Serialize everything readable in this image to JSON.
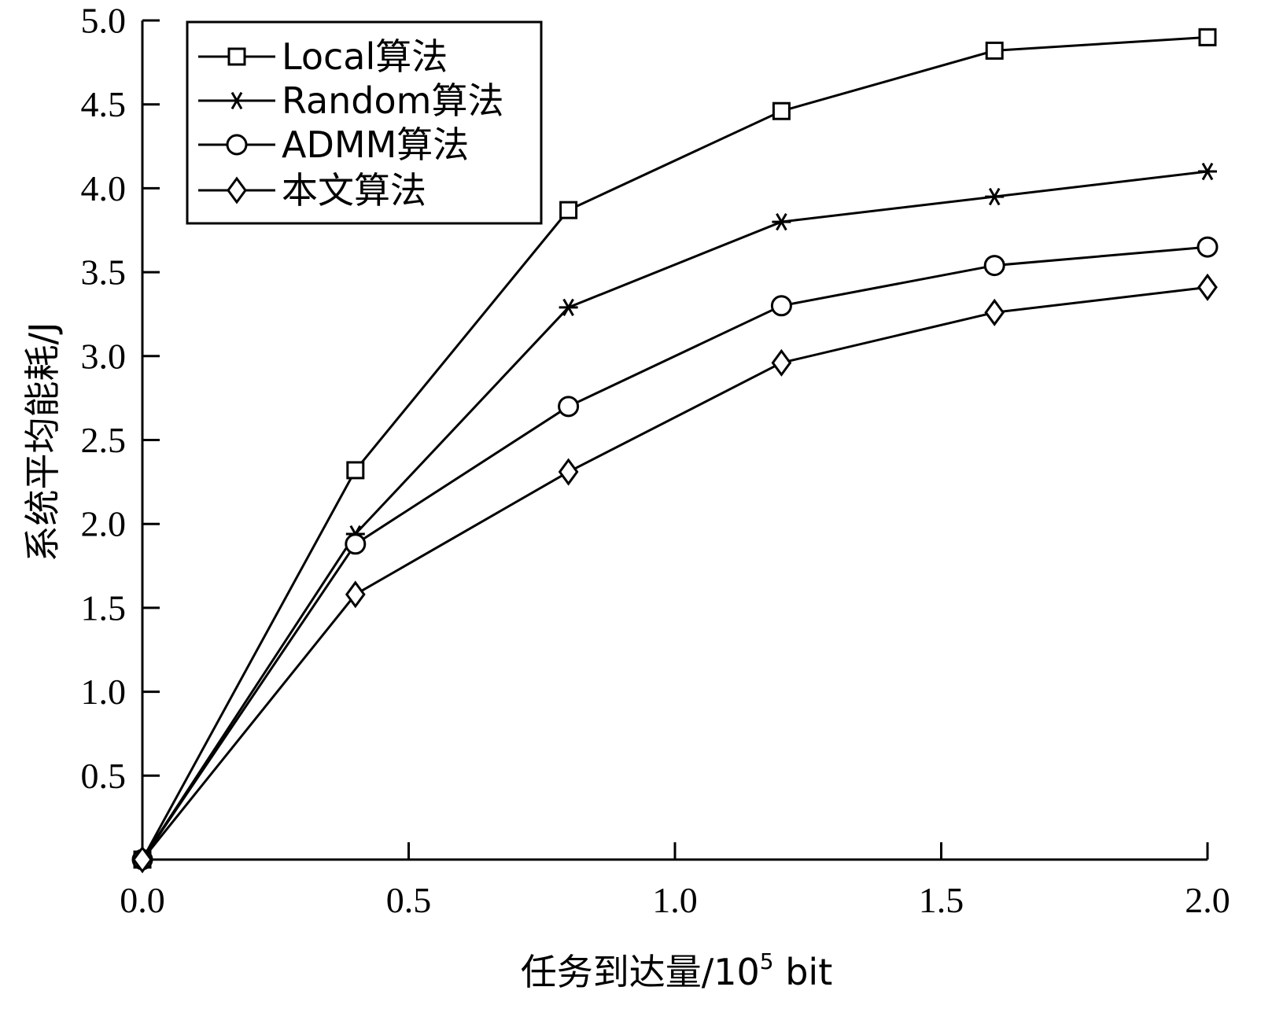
{
  "chart_data": {
    "type": "line",
    "title": "",
    "xlabel": "任务到达量/10",
    "xlabel_superscript": "5",
    "xlabel_unit": " bit",
    "ylabel": "系统平均能耗/J",
    "xlim": [
      0,
      2.0
    ],
    "ylim": [
      0,
      5.0
    ],
    "x_ticks": [
      "0.0",
      "0.5",
      "1.0",
      "1.5",
      "2.0"
    ],
    "y_ticks": [
      "0.5",
      "1.0",
      "1.5",
      "2.0",
      "2.5",
      "3.0",
      "3.5",
      "4.0",
      "4.5",
      "5.0"
    ],
    "grid": false,
    "legend_position": "top-left",
    "x": [
      0,
      0.4,
      0.8,
      1.2,
      1.6,
      2.0
    ],
    "series": [
      {
        "name": "Local算法",
        "marker": "square",
        "values": [
          0,
          2.32,
          3.87,
          4.46,
          4.82,
          4.9
        ]
      },
      {
        "name": "Random算法",
        "marker": "star",
        "values": [
          0,
          1.94,
          3.29,
          3.8,
          3.95,
          4.1
        ]
      },
      {
        "name": "ADMM算法",
        "marker": "circle",
        "values": [
          0,
          1.88,
          2.7,
          3.3,
          3.54,
          3.65
        ]
      },
      {
        "name": "本文算法",
        "marker": "diamond",
        "values": [
          0,
          1.58,
          2.31,
          2.96,
          3.26,
          3.41
        ]
      }
    ]
  }
}
